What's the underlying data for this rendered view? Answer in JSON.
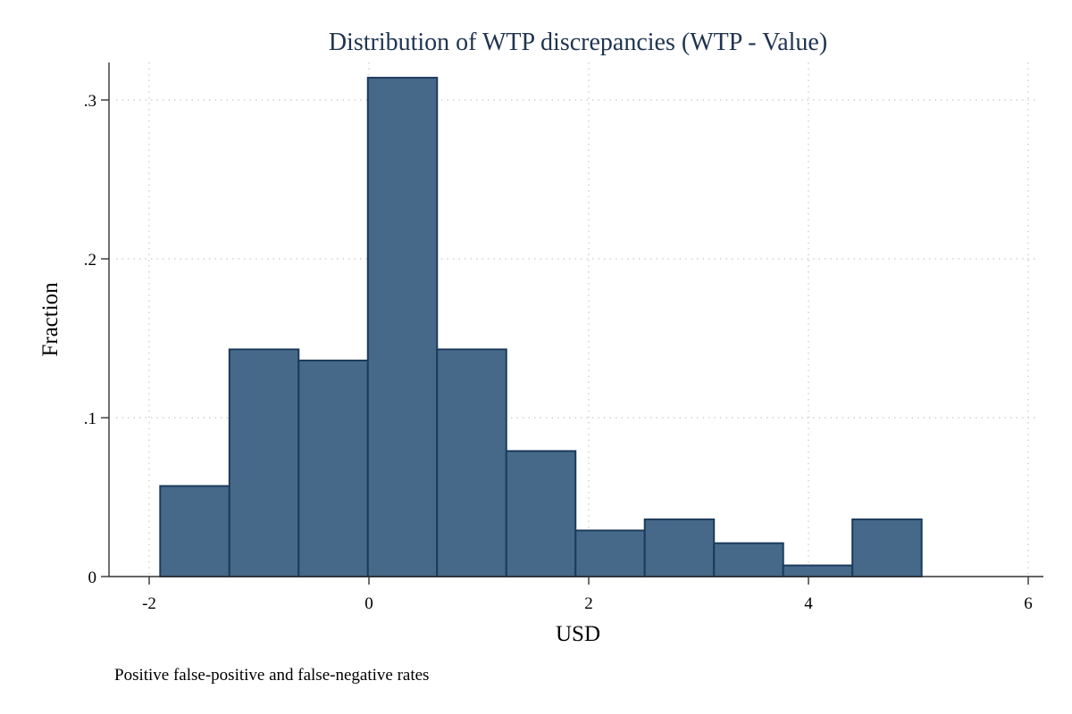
{
  "chart_data": {
    "type": "bar",
    "title": "Distribution of WTP discrepancies (WTP - Value)",
    "xlabel": "USD",
    "ylabel": "Fraction",
    "note": "Positive false-positive and false-negative rates",
    "xlim": [
      -2.3,
      6.0
    ],
    "ylim": [
      0,
      0.32
    ],
    "x_ticks": [
      {
        "value": -2,
        "label": "-2"
      },
      {
        "value": 0,
        "label": "0"
      },
      {
        "value": 2,
        "label": "2"
      },
      {
        "value": 4,
        "label": "4"
      },
      {
        "value": 6,
        "label": "6"
      }
    ],
    "y_ticks": [
      {
        "value": 0,
        "label": "0"
      },
      {
        "value": 0.1,
        "label": ".1"
      },
      {
        "value": 0.2,
        "label": ".2"
      },
      {
        "value": 0.3,
        "label": ".3"
      }
    ],
    "bins": [
      {
        "x0": -1.9,
        "x1": -1.27,
        "value": 0.057
      },
      {
        "x0": -1.27,
        "x1": -0.64,
        "value": 0.143
      },
      {
        "x0": -0.64,
        "x1": -0.01,
        "value": 0.136
      },
      {
        "x0": -0.01,
        "x1": 0.62,
        "value": 0.314
      },
      {
        "x0": 0.62,
        "x1": 1.25,
        "value": 0.143
      },
      {
        "x0": 1.25,
        "x1": 1.88,
        "value": 0.079
      },
      {
        "x0": 1.88,
        "x1": 2.51,
        "value": 0.029
      },
      {
        "x0": 2.51,
        "x1": 3.14,
        "value": 0.036
      },
      {
        "x0": 3.14,
        "x1": 3.77,
        "value": 0.021
      },
      {
        "x0": 3.77,
        "x1": 4.4,
        "value": 0.007
      },
      {
        "x0": 4.4,
        "x1": 5.03,
        "value": 0.036
      }
    ],
    "grid": true,
    "colors": {
      "bar_fill": "#46698a",
      "bar_edge": "#1c3a5a",
      "title": "#1f3450"
    }
  }
}
